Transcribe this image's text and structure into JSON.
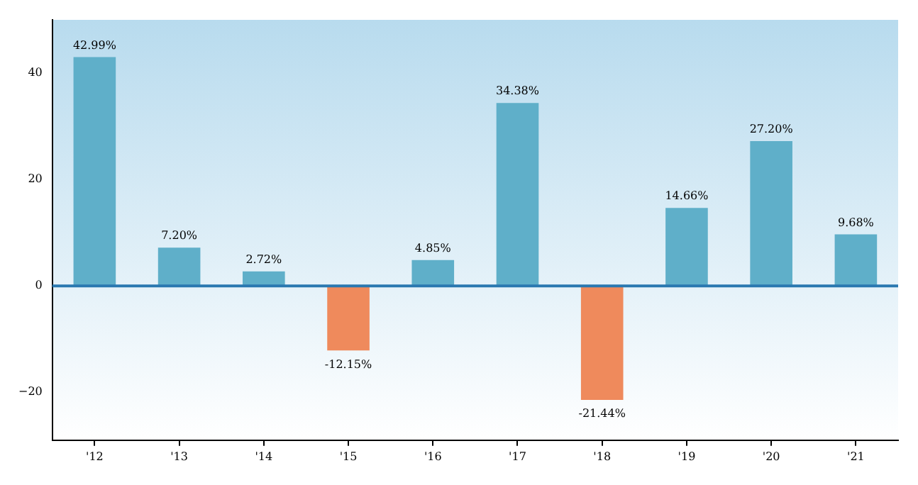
{
  "chart_data": {
    "type": "bar",
    "categories": [
      "'12",
      "'13",
      "'14",
      "'15",
      "'16",
      "'17",
      "'18",
      "'19",
      "'20",
      "'21"
    ],
    "values": [
      42.99,
      7.2,
      2.72,
      -12.15,
      4.85,
      34.38,
      -21.44,
      14.66,
      27.2,
      9.68
    ],
    "colors": [
      "#5fafc9",
      "#5fafc9",
      "#5fafc9",
      "#ef8a5c",
      "#5fafc9",
      "#5fafc9",
      "#ef8a5c",
      "#5fafc9",
      "#5fafc9",
      "#5fafc9"
    ],
    "value_labels": [
      "42.99%",
      "7.20%",
      "2.72%",
      "-12.15%",
      "4.85%",
      "34.38%",
      "-21.44%",
      "14.66%",
      "27.20%",
      "9.68%"
    ],
    "ylim": [
      -29,
      50
    ],
    "yticks": [
      -20,
      0,
      20,
      40
    ],
    "ref_lines": [
      {
        "axis": "y",
        "value": 0,
        "color": "#2a78b0"
      }
    ],
    "grid": false,
    "legend": false
  }
}
